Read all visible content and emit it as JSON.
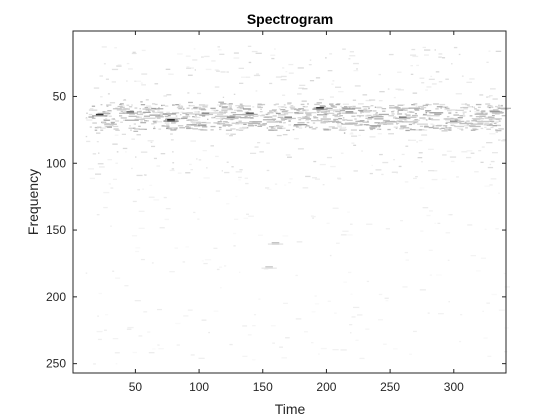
{
  "chart_data": {
    "type": "heatmap",
    "title": "Spectrogram",
    "xlabel": "Time",
    "ylabel": "Frequency",
    "xlim": [
      1,
      341
    ],
    "ylim": [
      1,
      257
    ],
    "y_direction": "reverse",
    "colormap": "gray (inverted: high = dark)",
    "xticks": [
      50,
      100,
      150,
      200,
      250,
      300
    ],
    "yticks": [
      50,
      100,
      150,
      200,
      250
    ],
    "description": "Mostly white, sparse energy concentrated around frequency bins 55–110, strongest near 60–70.",
    "features": [
      {
        "x": 22,
        "y": 64,
        "intensity": 0.8
      },
      {
        "x": 46,
        "y": 62,
        "intensity": 0.6
      },
      {
        "x": 78,
        "y": 68,
        "intensity": 0.95
      },
      {
        "x": 105,
        "y": 63,
        "intensity": 0.5
      },
      {
        "x": 125,
        "y": 66,
        "intensity": 0.5
      },
      {
        "x": 140,
        "y": 63,
        "intensity": 0.7
      },
      {
        "x": 170,
        "y": 66,
        "intensity": 0.5
      },
      {
        "x": 195,
        "y": 59,
        "intensity": 0.85
      },
      {
        "x": 218,
        "y": 62,
        "intensity": 0.45
      },
      {
        "x": 260,
        "y": 66,
        "intensity": 0.55
      },
      {
        "x": 300,
        "y": 69,
        "intensity": 0.45
      },
      {
        "x": 160,
        "y": 160,
        "intensity": 0.25
      },
      {
        "x": 155,
        "y": 178,
        "intensity": 0.2
      }
    ],
    "grid": false,
    "legend": "none"
  },
  "colors": {
    "axes_background": "#ffffff",
    "figure_background": "#ffffff",
    "axis_line": "#262626",
    "ink": "#000000"
  }
}
